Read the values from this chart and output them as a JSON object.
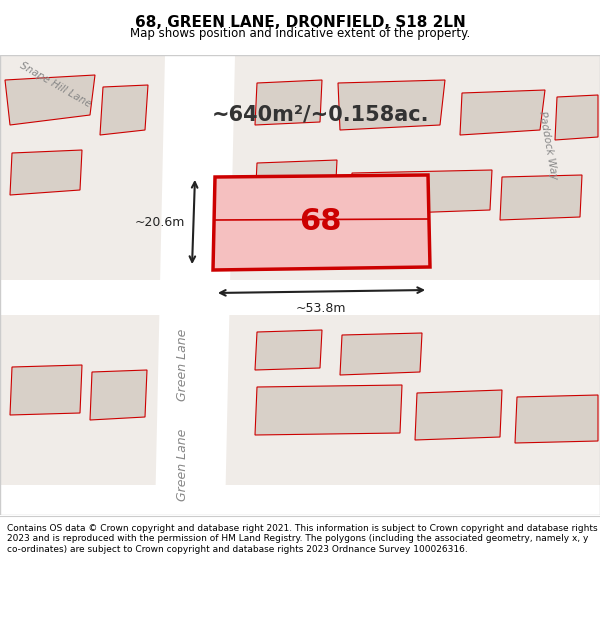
{
  "title": "68, GREEN LANE, DRONFIELD, S18 2LN",
  "subtitle": "Map shows position and indicative extent of the property.",
  "area_text": "~640m²/~0.158ac.",
  "property_number": "68",
  "dim_width": "~53.8m",
  "dim_height": "~20.6m",
  "footer": "Contains OS data © Crown copyright and database right 2021. This information is subject to Crown copyright and database rights 2023 and is reproduced with the permission of HM Land Registry. The polygons (including the associated geometry, namely x, y co-ordinates) are subject to Crown copyright and database rights 2023 Ordnance Survey 100026316.",
  "bg_map_color": "#f0ece8",
  "building_fill": "#d8d0c8",
  "road_color": "#ffffff",
  "property_outline_color": "#cc0000",
  "property_fill": "#f5c0c0",
  "street_label_color": "#888888",
  "title_color": "#000000",
  "footer_color": "#000000",
  "header_bg": "#ffffff",
  "footer_bg": "#ffffff",
  "map_border_color": "#cccccc"
}
